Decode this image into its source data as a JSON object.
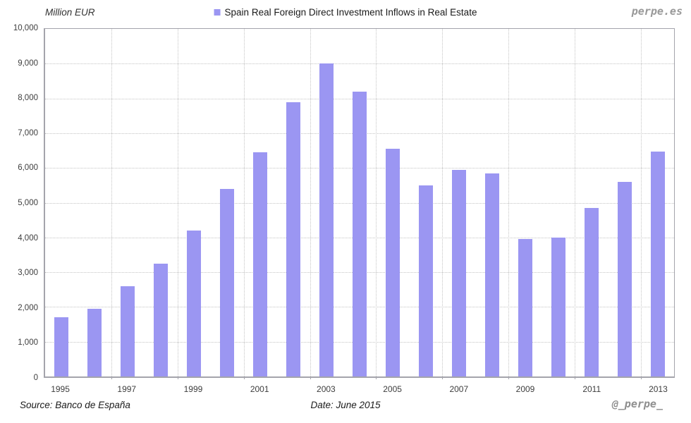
{
  "header": {
    "axis_unit_label": "Million EUR",
    "legend_label": "Spain Real Foreign Direct Investment Inflows in Real Estate",
    "brand": "perpe.es"
  },
  "footer": {
    "source": "Source: Banco de España",
    "date": "Date: June 2015",
    "handle": "@_perpe_"
  },
  "colors": {
    "bar": "#9b96f2",
    "legend_swatch": "#9b96f2",
    "gridline": "#c4c4c4",
    "axis_border": "#a4a4ac",
    "brand_gray": "#999999"
  },
  "chart_data": {
    "type": "bar",
    "title": "Spain Real Foreign Direct Investment Inflows in Real Estate",
    "ylabel": "Million EUR",
    "xlabel": "",
    "categories": [
      "1995",
      "1996",
      "1997",
      "1998",
      "1999",
      "2000",
      "2001",
      "2002",
      "2003",
      "2004",
      "2005",
      "2006",
      "2007",
      "2008",
      "2009",
      "2010",
      "2011",
      "2012",
      "2013"
    ],
    "values": [
      1700,
      1950,
      2600,
      3250,
      4200,
      5400,
      6450,
      7900,
      9000,
      8200,
      6550,
      5500,
      5950,
      5850,
      3950,
      4000,
      4850,
      5600,
      6470
    ],
    "ylim": [
      0,
      10000
    ],
    "ytick_step": 1000,
    "ytick_labels": [
      "0",
      "1,000",
      "2,000",
      "3,000",
      "4,000",
      "5,000",
      "6,000",
      "7,000",
      "8,000",
      "9,000",
      "10,000"
    ],
    "xtick_labels": [
      "1995",
      "1997",
      "1999",
      "2001",
      "2003",
      "2005",
      "2007",
      "2009",
      "2011",
      "2013"
    ],
    "xtick_every": 2,
    "grid": "dotted",
    "legend_position": "top-center"
  }
}
